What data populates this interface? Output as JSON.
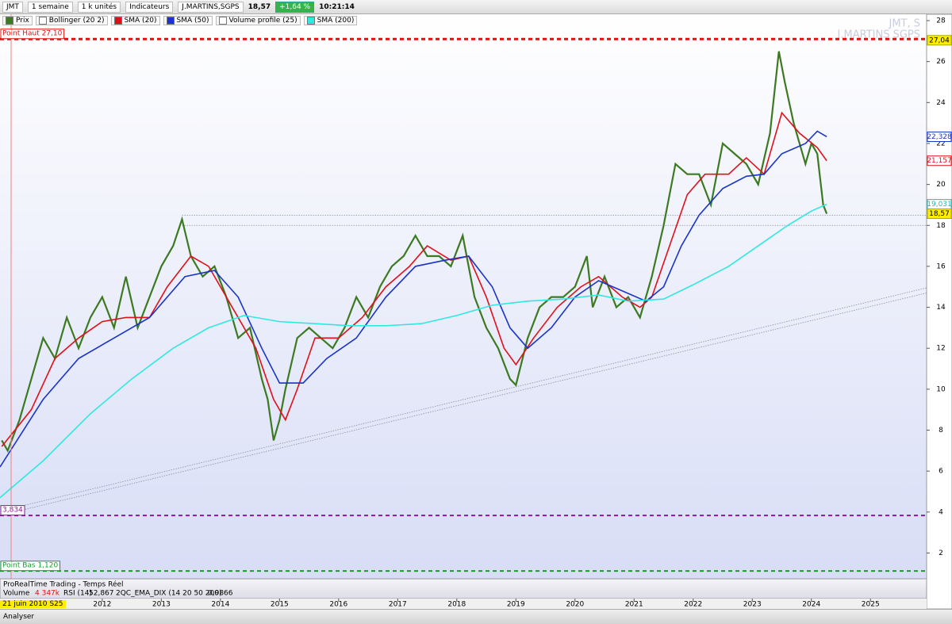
{
  "toolbar": {
    "symbol": "JMT",
    "period": "1 semaine",
    "units": "1 k unités",
    "indicators": "Indicateurs",
    "name": "J.MARTINS,SGPS",
    "price": "18,57",
    "change": "+1,64 %",
    "time": "10:21:14"
  },
  "watermark": {
    "symbol": "JMT, S",
    "name": "J.MARTINS SGPS"
  },
  "chart_data": {
    "type": "line",
    "xlim": [
      2010.27,
      2025.95
    ],
    "xticks": [
      2012,
      2013,
      2014,
      2015,
      2016,
      2017,
      2018,
      2019,
      2020,
      2021,
      2022,
      2023,
      2024,
      2025
    ],
    "ylim": [
      0.74,
      28.31
    ],
    "yticks": [
      2,
      4,
      6,
      8,
      10,
      12,
      14,
      16,
      18,
      20,
      22,
      24,
      26,
      28
    ],
    "indicators": [
      "Bollinger (20 2)",
      "Volume profile (25)"
    ],
    "series": [
      {
        "name": "Prix",
        "color": "#3c7a22",
        "x": [
          2010.3,
          2010.4,
          2010.6,
          2010.8,
          2011.0,
          2011.2,
          2011.4,
          2011.6,
          2011.8,
          2012.0,
          2012.2,
          2012.4,
          2012.6,
          2012.8,
          2013.0,
          2013.2,
          2013.35,
          2013.5,
          2013.7,
          2013.9,
          2014.1,
          2014.3,
          2014.5,
          2014.7,
          2014.8,
          2014.9,
          2015.0,
          2015.1,
          2015.3,
          2015.5,
          2015.7,
          2015.9,
          2016.1,
          2016.3,
          2016.5,
          2016.7,
          2016.9,
          2017.1,
          2017.3,
          2017.5,
          2017.7,
          2017.9,
          2018.1,
          2018.3,
          2018.5,
          2018.7,
          2018.9,
          2019.0,
          2019.2,
          2019.4,
          2019.6,
          2019.8,
          2020.0,
          2020.2,
          2020.3,
          2020.5,
          2020.7,
          2020.9,
          2021.1,
          2021.3,
          2021.5,
          2021.7,
          2021.9,
          2022.1,
          2022.3,
          2022.5,
          2022.7,
          2022.9,
          2023.1,
          2023.3,
          2023.45,
          2023.55,
          2023.7,
          2023.9,
          2024.0,
          2024.1,
          2024.2,
          2024.26
        ],
        "values": [
          7.5,
          7.0,
          8.5,
          10.5,
          12.5,
          11.5,
          13.5,
          12.0,
          13.5,
          14.5,
          13.0,
          15.5,
          13.0,
          14.5,
          16.0,
          17.0,
          18.3,
          16.5,
          15.5,
          16.0,
          14.5,
          12.5,
          13.0,
          10.5,
          9.5,
          7.5,
          8.5,
          10.0,
          12.5,
          13.0,
          12.5,
          12.0,
          13.0,
          14.5,
          13.5,
          15.0,
          16.0,
          16.5,
          17.5,
          16.5,
          16.5,
          16.0,
          17.5,
          14.5,
          13.0,
          12.0,
          10.5,
          10.2,
          12.5,
          14.0,
          14.5,
          14.5,
          15.0,
          16.5,
          14.0,
          15.5,
          14.0,
          14.5,
          13.5,
          15.5,
          18.0,
          21.0,
          20.5,
          20.5,
          19.0,
          22.0,
          21.5,
          21.0,
          20.0,
          22.5,
          26.5,
          25.0,
          23.0,
          21.0,
          22.0,
          21.5,
          19.0,
          18.57
        ]
      },
      {
        "name": "SMA (20)",
        "color": "#e0101a",
        "x": [
          2010.3,
          2010.8,
          2011.2,
          2011.6,
          2012.0,
          2012.4,
          2012.8,
          2013.1,
          2013.5,
          2013.8,
          2014.2,
          2014.6,
          2014.9,
          2015.1,
          2015.3,
          2015.6,
          2016.0,
          2016.4,
          2016.8,
          2017.2,
          2017.5,
          2017.9,
          2018.2,
          2018.5,
          2018.8,
          2019.0,
          2019.3,
          2019.7,
          2020.1,
          2020.4,
          2020.8,
          2021.1,
          2021.3,
          2021.6,
          2021.9,
          2022.2,
          2022.6,
          2022.9,
          2023.2,
          2023.5,
          2023.8,
          2024.1,
          2024.26
        ],
        "values": [
          7.2,
          9,
          11.5,
          12.5,
          13.3,
          13.5,
          13.5,
          15,
          16.5,
          16,
          14,
          12,
          9.5,
          8.5,
          10,
          12.5,
          12.5,
          13.5,
          15,
          16,
          17,
          16.3,
          16.5,
          14.5,
          12,
          11.2,
          12.5,
          14,
          15,
          15.5,
          14.5,
          14,
          14.5,
          17,
          19.5,
          20.5,
          20.5,
          21.3,
          20.5,
          23.5,
          22.5,
          21.8,
          21.157
        ]
      },
      {
        "name": "SMA (50)",
        "color": "#1a33c8",
        "x": [
          2010.27,
          2011.0,
          2011.6,
          2012.2,
          2012.8,
          2013.4,
          2013.9,
          2014.3,
          2014.7,
          2015.0,
          2015.4,
          2015.8,
          2016.3,
          2016.8,
          2017.3,
          2017.8,
          2018.2,
          2018.6,
          2018.9,
          2019.2,
          2019.6,
          2020.0,
          2020.4,
          2020.8,
          2021.2,
          2021.5,
          2021.8,
          2022.1,
          2022.5,
          2022.9,
          2023.2,
          2023.5,
          2023.9,
          2024.1,
          2024.26
        ],
        "values": [
          6.2,
          9.5,
          11.5,
          12.5,
          13.5,
          15.5,
          15.8,
          14.5,
          12,
          10.3,
          10.3,
          11.5,
          12.5,
          14.5,
          16,
          16.3,
          16.5,
          15,
          13,
          12,
          13,
          14.5,
          15.3,
          14.8,
          14.3,
          15,
          17,
          18.5,
          19.8,
          20.4,
          20.5,
          21.5,
          22,
          22.6,
          22.328
        ]
      },
      {
        "name": "SMA (200)",
        "color": "#2fe8e0",
        "x": [
          2010.27,
          2011.0,
          2011.8,
          2012.5,
          2013.2,
          2013.8,
          2014.4,
          2015.0,
          2015.6,
          2016.2,
          2016.8,
          2017.4,
          2018.0,
          2018.6,
          2019.2,
          2019.8,
          2020.4,
          2020.9,
          2021.5,
          2022.0,
          2022.6,
          2023.1,
          2023.6,
          2024.0,
          2024.26
        ],
        "values": [
          4.7,
          6.5,
          8.8,
          10.5,
          12,
          13,
          13.6,
          13.3,
          13.2,
          13.1,
          13.1,
          13.2,
          13.6,
          14.1,
          14.3,
          14.4,
          14.6,
          14.3,
          14.4,
          15.1,
          16.0,
          17.0,
          18.0,
          18.7,
          19.031
        ]
      }
    ],
    "levels": [
      {
        "label": "Point Haut 27,10",
        "value": 27.1,
        "color": "#e01010"
      },
      {
        "label": "3,834",
        "value": 3.834,
        "color": "#8a1a9a"
      },
      {
        "label": "Point Bas 1,120",
        "value": 1.12,
        "color": "#1a9a2a"
      }
    ],
    "trendlines": [
      {
        "x": [
          2010.5,
          2025.95
        ],
        "y": [
          4.0,
          14.7
        ]
      },
      {
        "x": [
          2010.5,
          2025.95
        ],
        "y": [
          4.2,
          14.95
        ]
      },
      {
        "x": [
          2013.35,
          2025.95
        ],
        "y": [
          18.5,
          18.5
        ]
      },
      {
        "x": [
          2013.35,
          2025.95
        ],
        "y": [
          18.0,
          18.0
        ]
      }
    ],
    "price_labels": [
      {
        "value": 27.04,
        "label": "27,04",
        "color": "#ffee00"
      },
      {
        "value": 22.328,
        "label": "22,328",
        "color": "#1a33c8"
      },
      {
        "value": 21.157,
        "label": "21,157",
        "color": "#e0101a"
      },
      {
        "value": 19.031,
        "label": "19,031",
        "color": "#20b8c0"
      },
      {
        "value": 18.57,
        "label": "18,57",
        "color": "#ffee00"
      }
    ]
  },
  "panel": {
    "source": "ProRealTime Trading - Temps Réel",
    "volume": "Volume",
    "volume_value": "4 347k",
    "rsi": "RSI (14)",
    "rsi_value": "52,867",
    "ema": "2QC_EMA_DIX (14 20 50 200)",
    "ema_value": "0,9866"
  },
  "footer": {
    "date": "21 juin 2010 S25",
    "analyse": "Analyser"
  }
}
